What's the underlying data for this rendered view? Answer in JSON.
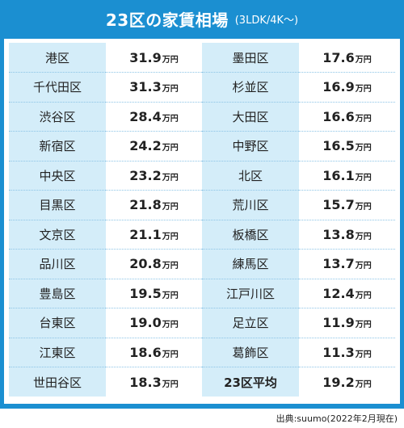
{
  "header": {
    "title": "23区の家賃相場",
    "subtitle": "(3LDK/4K〜)"
  },
  "unit": "万円",
  "rows": [
    {
      "left": {
        "ward": "港区",
        "rent": "31.9"
      },
      "right": {
        "ward": "墨田区",
        "rent": "17.6"
      }
    },
    {
      "left": {
        "ward": "千代田区",
        "rent": "31.3"
      },
      "right": {
        "ward": "杉並区",
        "rent": "16.9"
      }
    },
    {
      "left": {
        "ward": "渋谷区",
        "rent": "28.4"
      },
      "right": {
        "ward": "大田区",
        "rent": "16.6"
      }
    },
    {
      "left": {
        "ward": "新宿区",
        "rent": "24.2"
      },
      "right": {
        "ward": "中野区",
        "rent": "16.5"
      }
    },
    {
      "left": {
        "ward": "中央区",
        "rent": "23.2"
      },
      "right": {
        "ward": "北区",
        "rent": "16.1"
      }
    },
    {
      "left": {
        "ward": "目黒区",
        "rent": "21.8"
      },
      "right": {
        "ward": "荒川区",
        "rent": "15.7"
      }
    },
    {
      "left": {
        "ward": "文京区",
        "rent": "21.1"
      },
      "right": {
        "ward": "板橋区",
        "rent": "13.8"
      }
    },
    {
      "left": {
        "ward": "品川区",
        "rent": "20.8"
      },
      "right": {
        "ward": "練馬区",
        "rent": "13.7"
      }
    },
    {
      "left": {
        "ward": "豊島区",
        "rent": "19.5"
      },
      "right": {
        "ward": "江戸川区",
        "rent": "12.4"
      }
    },
    {
      "left": {
        "ward": "台東区",
        "rent": "19.0"
      },
      "right": {
        "ward": "足立区",
        "rent": "11.9"
      }
    },
    {
      "left": {
        "ward": "江東区",
        "rent": "18.6"
      },
      "right": {
        "ward": "葛飾区",
        "rent": "11.3"
      }
    },
    {
      "left": {
        "ward": "世田谷区",
        "rent": "18.3"
      },
      "right": {
        "ward": "23区平均",
        "rent": "19.2",
        "highlight": true
      }
    }
  ],
  "colors": {
    "frame": "#1b8fd1",
    "ward_cell": "#d4edf9",
    "highlight": "#e8315a"
  },
  "footer": {
    "source": "出典:suumo(2022年2月現在)"
  }
}
